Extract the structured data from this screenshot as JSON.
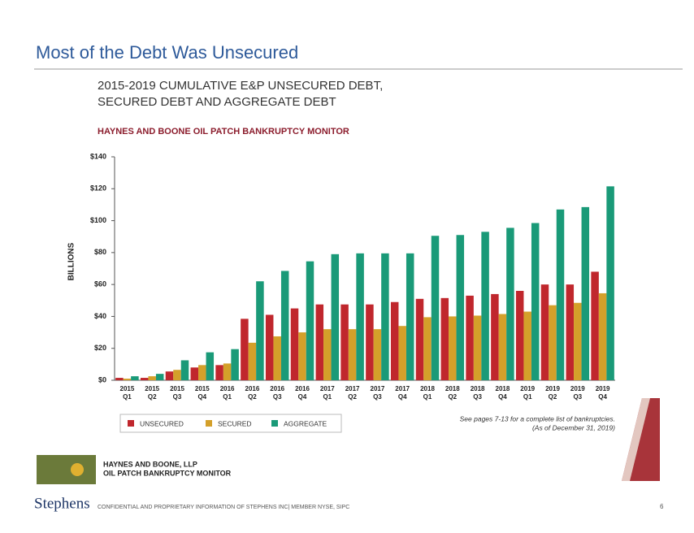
{
  "header": {
    "title": "Most of the Debt Was Unsecured"
  },
  "chart_data": {
    "type": "bar",
    "title": [
      "2015-2019 CUMULATIVE E&P UNSECURED DEBT,",
      "SECURED DEBT AND AGGREGATE DEBT"
    ],
    "subtitle": "HAYNES AND BOONE OIL PATCH BANKRUPTCY MONITOR",
    "ylabel": "BILLIONS",
    "categories": [
      [
        "2015",
        "Q1"
      ],
      [
        "2015",
        "Q2"
      ],
      [
        "2015",
        "Q3"
      ],
      [
        "2015",
        "Q4"
      ],
      [
        "2016",
        "Q1"
      ],
      [
        "2016",
        "Q2"
      ],
      [
        "2016",
        "Q3"
      ],
      [
        "2016",
        "Q4"
      ],
      [
        "2017",
        "Q1"
      ],
      [
        "2017",
        "Q2"
      ],
      [
        "2017",
        "Q3"
      ],
      [
        "2017",
        "Q4"
      ],
      [
        "2018",
        "Q1"
      ],
      [
        "2018",
        "Q2"
      ],
      [
        "2018",
        "Q3"
      ],
      [
        "2018",
        "Q4"
      ],
      [
        "2019",
        "Q1"
      ],
      [
        "2019",
        "Q2"
      ],
      [
        "2019",
        "Q3"
      ],
      [
        "2019",
        "Q4"
      ]
    ],
    "series": [
      {
        "name": "UNSECURED",
        "color": "#c0272d",
        "values": [
          1.5,
          1.5,
          5.5,
          8,
          9.5,
          38.5,
          41,
          45,
          47.5,
          47.5,
          47.5,
          49,
          51,
          51.5,
          53,
          54,
          56,
          60,
          60,
          68
        ]
      },
      {
        "name": "SECURED",
        "color": "#d4a02a",
        "values": [
          1,
          2.5,
          6.5,
          9.5,
          10.5,
          23.5,
          27.5,
          30,
          32,
          32,
          32,
          34,
          39.5,
          40,
          40.5,
          41.5,
          43,
          47,
          48.5,
          54.5
        ]
      },
      {
        "name": "AGGREGATE",
        "color": "#1a9a78",
        "values": [
          2.5,
          4,
          12.5,
          17.5,
          19.5,
          62,
          68.5,
          74.5,
          79,
          79.5,
          79.5,
          79.5,
          90.5,
          91,
          93,
          95.5,
          98.5,
          107,
          108.5,
          121.5
        ]
      }
    ],
    "ylim": [
      0,
      140
    ],
    "yticks": [
      {
        "value": 0,
        "label": "$0"
      },
      {
        "value": 20,
        "label": "$20"
      },
      {
        "value": 40,
        "label": "$40"
      },
      {
        "value": 60,
        "label": "$60"
      },
      {
        "value": 80,
        "label": "$80"
      },
      {
        "value": 100,
        "label": "$100"
      },
      {
        "value": 120,
        "label": "$120"
      },
      {
        "value": 140,
        "label": "$140"
      }
    ],
    "notes": [
      "See pages 7-13 for a complete list of bankruptcies.",
      "(As of December 31, 2019)"
    ]
  },
  "footer": {
    "source": [
      "HAYNES AND BOONE, LLP",
      "OIL PATCH BANKRUPTCY MONITOR"
    ],
    "brand": "Stephens",
    "disclaimer": "CONFIDENTIAL AND PROPRIETARY INFORMATION OF STEPHENS INC| MEMBER NYSE, SIPC",
    "page": "6"
  }
}
